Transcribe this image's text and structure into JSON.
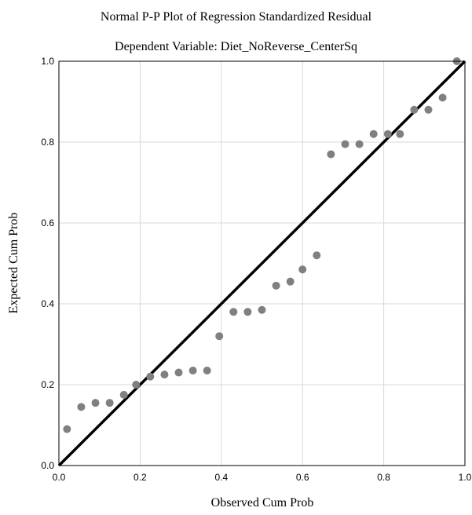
{
  "chart_data": {
    "type": "scatter",
    "title": "Normal P-P Plot of Regression Standardized Residual",
    "subtitle": "Dependent Variable: Diet_NoReverse_CenterSq",
    "xlabel": "Observed Cum Prob",
    "ylabel": "Expected Cum Prob",
    "xlim": [
      0.0,
      1.0
    ],
    "ylim": [
      0.0,
      1.0
    ],
    "xticks": [
      "0.0",
      "0.2",
      "0.4",
      "0.6",
      "0.8",
      "1.0"
    ],
    "yticks": [
      "0.0",
      "0.2",
      "0.4",
      "0.6",
      "0.8",
      "1.0"
    ],
    "grid": true,
    "reference_line": [
      [
        0.0,
        0.0
      ],
      [
        1.0,
        1.0
      ]
    ],
    "colors": {
      "points": "#808080",
      "line": "#000000",
      "grid": "#d9d9d9",
      "frame": "#000000"
    },
    "points": [
      [
        0.02,
        0.09
      ],
      [
        0.055,
        0.145
      ],
      [
        0.09,
        0.155
      ],
      [
        0.125,
        0.155
      ],
      [
        0.16,
        0.175
      ],
      [
        0.19,
        0.2
      ],
      [
        0.225,
        0.22
      ],
      [
        0.26,
        0.225
      ],
      [
        0.295,
        0.23
      ],
      [
        0.33,
        0.235
      ],
      [
        0.365,
        0.235
      ],
      [
        0.395,
        0.32
      ],
      [
        0.43,
        0.38
      ],
      [
        0.465,
        0.38
      ],
      [
        0.5,
        0.385
      ],
      [
        0.535,
        0.445
      ],
      [
        0.57,
        0.455
      ],
      [
        0.6,
        0.485
      ],
      [
        0.635,
        0.52
      ],
      [
        0.67,
        0.77
      ],
      [
        0.705,
        0.795
      ],
      [
        0.74,
        0.795
      ],
      [
        0.775,
        0.82
      ],
      [
        0.81,
        0.82
      ],
      [
        0.84,
        0.82
      ],
      [
        0.875,
        0.88
      ],
      [
        0.91,
        0.88
      ],
      [
        0.945,
        0.91
      ],
      [
        0.98,
        1.0
      ]
    ]
  }
}
